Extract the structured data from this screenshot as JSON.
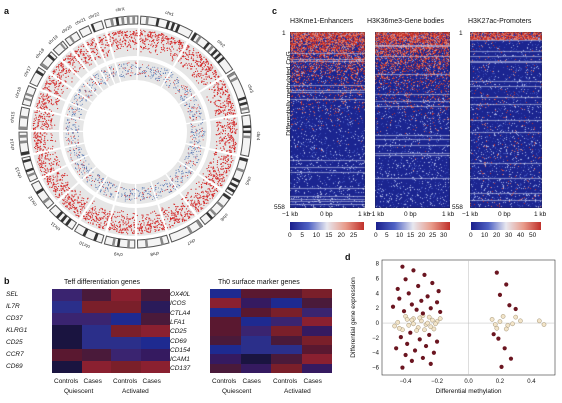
{
  "panels": {
    "a": {
      "label": "a",
      "chromosomes": [
        "chr1",
        "chr2",
        "chr3",
        "chr4",
        "chr5",
        "chr6",
        "chr7",
        "chr8",
        "chr9",
        "chr10",
        "chr11",
        "chr12",
        "chr13",
        "chr14",
        "chr15",
        "chr16",
        "chr17",
        "chr18",
        "chr19",
        "chr20",
        "chr21",
        "chr22",
        "chrX"
      ]
    },
    "b": {
      "label": "b",
      "left_title": "Teff differentiation genes",
      "left_genes": [
        "SEL",
        "IL7R",
        "CD37",
        "KLRG1",
        "CD25",
        "CCR7",
        "CD69"
      ],
      "right_title": "Th0 surface marker genes",
      "right_genes": [
        "OX40L",
        "ICOS",
        "CTLA4",
        "LFA1",
        "CD25",
        "CD69",
        "CD154",
        "ICAM1",
        "CD137"
      ],
      "col_labels": [
        "Controls",
        "Cases",
        "Controls",
        "Cases"
      ],
      "group_labels": [
        "Quiescent",
        "Activated"
      ]
    },
    "c": {
      "label": "c",
      "titles": [
        "H3Kme1-Enhancers",
        "H3K36me3-Gene bodies",
        "H3K27ac-Promoters"
      ],
      "ylabel": "Differentially methylated CpG",
      "row_top": "1",
      "row_bottom": "558",
      "xticks": [
        "−1 kb",
        "0 bp",
        "1 kb"
      ],
      "colorbar1_ticks": [
        "0",
        "5",
        "10",
        "15",
        "20",
        "25"
      ],
      "colorbar2_ticks": [
        "0",
        "10",
        "20",
        "30",
        "40",
        "50"
      ],
      "colorbar_extra": "30"
    },
    "d": {
      "label": "d",
      "xlabel": "Differential methylation",
      "ylabel": "Differential gene expression",
      "xticks": [
        "−0.4",
        "−0.2",
        "0.0",
        "0.2",
        "0.4"
      ],
      "yticks": [
        "8",
        "6",
        "4",
        "2",
        "0",
        "−2",
        "−4",
        "−6"
      ]
    }
  },
  "chart_data": {
    "type": "scatter",
    "xlabel": "Differential methylation",
    "ylabel": "Differential gene expression",
    "xlim": [
      -0.55,
      0.55
    ],
    "ylim": [
      -7,
      8.5
    ],
    "colors": {
      "significant": "#6b1520",
      "non_significant": "#f2e4c8"
    },
    "significant_points": [
      [
        -0.42,
        7.6
      ],
      [
        -0.35,
        7.1
      ],
      [
        -0.28,
        6.5
      ],
      [
        -0.4,
        5.9
      ],
      [
        -0.23,
        5.4
      ],
      [
        -0.32,
        5.0
      ],
      [
        -0.45,
        4.6
      ],
      [
        -0.19,
        4.3
      ],
      [
        -0.38,
        4.0
      ],
      [
        -0.26,
        3.6
      ],
      [
        -0.44,
        3.3
      ],
      [
        -0.3,
        3.0
      ],
      [
        -0.2,
        2.8
      ],
      [
        -0.36,
        2.5
      ],
      [
        -0.48,
        2.2
      ],
      [
        -0.24,
        2.0
      ],
      [
        -0.33,
        1.8
      ],
      [
        -0.41,
        1.6
      ],
      [
        -0.18,
        1.5
      ],
      [
        -0.29,
        1.3
      ],
      [
        -0.37,
        -1.3
      ],
      [
        -0.25,
        -1.6
      ],
      [
        -0.43,
        -1.9
      ],
      [
        -0.31,
        -2.2
      ],
      [
        -0.2,
        -2.5
      ],
      [
        -0.39,
        -2.8
      ],
      [
        -0.27,
        -3.1
      ],
      [
        -0.46,
        -3.4
      ],
      [
        -0.34,
        -3.7
      ],
      [
        -0.22,
        -4.0
      ],
      [
        -0.4,
        -4.3
      ],
      [
        -0.29,
        -4.7
      ],
      [
        -0.36,
        -5.1
      ],
      [
        -0.24,
        -5.5
      ],
      [
        -0.42,
        -6.0
      ],
      [
        0.18,
        6.8
      ],
      [
        0.24,
        5.2
      ],
      [
        0.2,
        3.8
      ],
      [
        0.26,
        2.4
      ],
      [
        0.19,
        -2.1
      ],
      [
        0.23,
        -3.4
      ],
      [
        0.27,
        -4.8
      ],
      [
        0.21,
        -5.9
      ],
      [
        0.3,
        1.9
      ],
      [
        0.16,
        -1.5
      ]
    ],
    "non_significant_points": [
      [
        -0.4,
        0.9
      ],
      [
        -0.35,
        0.6
      ],
      [
        -0.3,
        0.3
      ],
      [
        -0.25,
        0.8
      ],
      [
        -0.2,
        0.2
      ],
      [
        -0.45,
        0.1
      ],
      [
        -0.38,
        -0.3
      ],
      [
        -0.32,
        -0.6
      ],
      [
        -0.27,
        -0.2
      ],
      [
        -0.22,
        -0.8
      ],
      [
        -0.42,
        -0.9
      ],
      [
        -0.36,
        0.4
      ],
      [
        -0.29,
        1.0
      ],
      [
        -0.24,
        -0.5
      ],
      [
        -0.18,
        0.6
      ],
      [
        -0.47,
        -0.4
      ],
      [
        -0.33,
        -1.0
      ],
      [
        -0.26,
        0.0
      ],
      [
        -0.21,
        -0.1
      ],
      [
        -0.39,
        0.5
      ],
      [
        -0.44,
        -0.7
      ],
      [
        -0.31,
        0.7
      ],
      [
        -0.28,
        -0.9
      ],
      [
        -0.35,
        -0.1
      ],
      [
        -0.23,
        0.4
      ],
      [
        0.15,
        0.5
      ],
      [
        0.2,
        0.2
      ],
      [
        0.25,
        -0.3
      ],
      [
        0.3,
        0.8
      ],
      [
        0.18,
        -0.7
      ],
      [
        0.22,
        0.9
      ],
      [
        0.28,
        -0.1
      ],
      [
        0.33,
        0.3
      ],
      [
        0.17,
        -0.2
      ],
      [
        0.24,
        -0.8
      ],
      [
        0.48,
        -0.2
      ],
      [
        0.45,
        0.3
      ]
    ]
  }
}
